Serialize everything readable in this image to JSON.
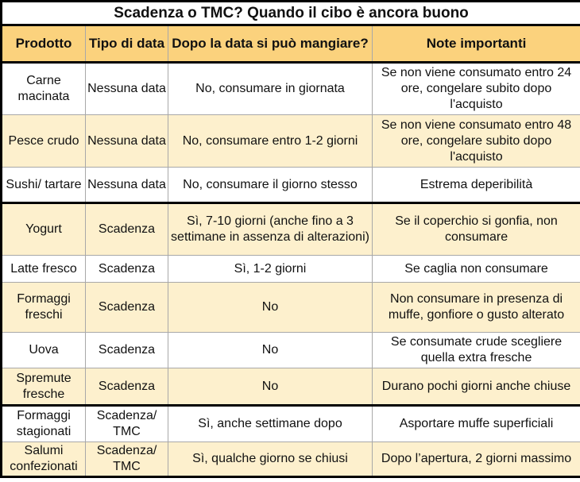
{
  "title": "Scadenza o TMC? Quando il cibo è ancora buono",
  "colors": {
    "header": "#fbd27d",
    "row_alt": "#fdf0cd",
    "row": "#ffffff"
  },
  "headers": [
    "Prodotto",
    "Tipo di data",
    "Dopo la data si può mangiare?",
    "Note importanti"
  ],
  "rows": [
    {
      "product": "Carne macinata",
      "type": "Nessuna data",
      "after": "No, consumare in giornata",
      "notes": "Se non viene consumato entro 24 ore, congelare subito dopo l'acquisto"
    },
    {
      "product": "Pesce crudo",
      "type": "Nessuna data",
      "after": "No, consumare entro 1-2 giorni",
      "notes": "Se non viene consumato entro 48 ore, congelare subito dopo l'acquisto"
    },
    {
      "product": "Sushi/ tartare",
      "type": "Nessuna data",
      "after": "No, consumare il giorno stesso",
      "notes": "Estrema deperibilità"
    },
    {
      "product": "Yogurt",
      "type": "Scadenza",
      "after": "Sì, 7-10 giorni (anche fino a 3 settimane in assenza di alterazioni)",
      "notes": "Se il coperchio si gonfia, non consumare"
    },
    {
      "product": "Latte fresco",
      "type": "Scadenza",
      "after": "Sì, 1-2 giorni",
      "notes": "Se caglia non consumare"
    },
    {
      "product": "Formaggi freschi",
      "type": "Scadenza",
      "after": "No",
      "notes": "Non consumare in presenza di muffe, gonfiore o gusto alterato"
    },
    {
      "product": "Uova",
      "type": "Scadenza",
      "after": "No",
      "notes": "Se consumate crude scegliere quella extra fresche"
    },
    {
      "product": "Spremute fresche",
      "type": "Scadenza",
      "after": "No",
      "notes": "Durano pochi giorni anche chiuse"
    },
    {
      "product": "Formaggi stagionati",
      "type": "Scadenza/ TMC",
      "after": "Sì, anche settimane dopo",
      "notes": "Asportare muffe superficiali"
    },
    {
      "product": "Salumi confezionati",
      "type": "Scadenza/ TMC",
      "after": "Sì, qualche giorno se chiusi",
      "notes": "Dopo l’apertura, 2 giorni massimo"
    }
  ]
}
